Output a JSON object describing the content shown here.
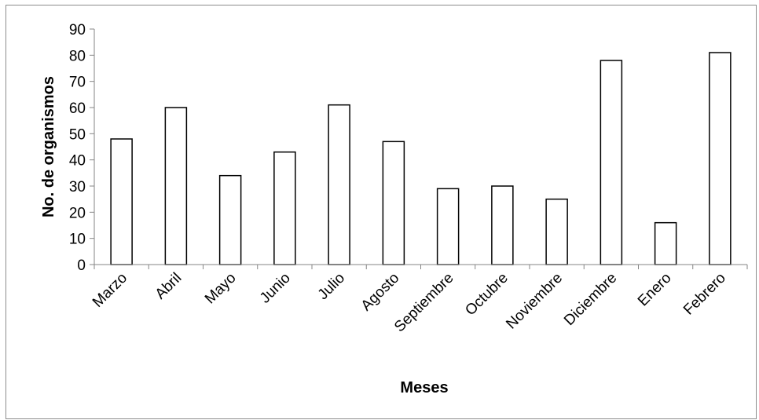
{
  "chart_data": {
    "type": "bar",
    "categories": [
      "Marzo",
      "Abril",
      "Mayo",
      "Junio",
      "Julio",
      "Agosto",
      "Septiembre",
      "Octubre",
      "Noviembre",
      "Diciembre",
      "Enero",
      "Febrero"
    ],
    "values": [
      48,
      60,
      34,
      43,
      61,
      47,
      29,
      30,
      25,
      78,
      16,
      81
    ],
    "title": "",
    "xlabel": "Meses",
    "ylabel": "No. de organismos",
    "ylim": [
      0,
      90
    ],
    "yticks": [
      0,
      10,
      20,
      30,
      40,
      50,
      60,
      70,
      80,
      90
    ],
    "grid": false,
    "legend": "none",
    "colors": {
      "bar_fill": "#ffffff",
      "bar_stroke": "#000000",
      "axis": "#868686",
      "frame": "#8c8c8c"
    }
  }
}
